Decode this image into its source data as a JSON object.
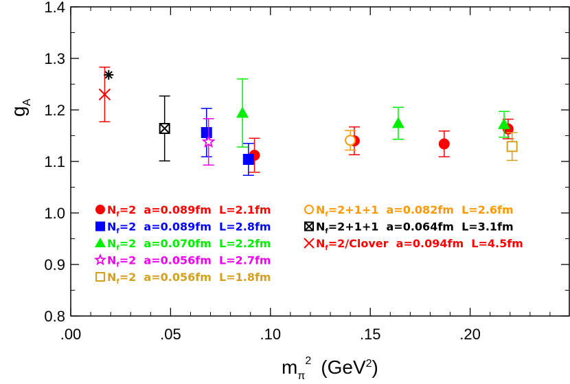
{
  "chart_data": {
    "type": "scatter",
    "xlabel_main": "m",
    "xlabel_sub": "π",
    "xlabel_sup": "2",
    "xlabel_unit": "(GeV",
    "xlabel_unit_sup": "2",
    "xlabel_unit_close": ")",
    "ylabel_main": "g",
    "ylabel_sub": "A",
    "xlim": [
      0.0,
      0.25
    ],
    "ylim": [
      0.8,
      1.4
    ],
    "x_ticks": [
      {
        "value": 0.0,
        "label": ".00"
      },
      {
        "value": 0.05,
        "label": ".05"
      },
      {
        "value": 0.1,
        "label": ".10"
      },
      {
        "value": 0.15,
        "label": ".15"
      },
      {
        "value": 0.2,
        "label": ".20"
      }
    ],
    "y_ticks": [
      {
        "value": 0.8,
        "label": "0.8"
      },
      {
        "value": 0.9,
        "label": "0.9"
      },
      {
        "value": 1.0,
        "label": "1.0"
      },
      {
        "value": 1.1,
        "label": "1.1"
      },
      {
        "value": 1.2,
        "label": "1.2"
      },
      {
        "value": 1.3,
        "label": "1.3"
      },
      {
        "value": 1.4,
        "label": "1.4"
      }
    ],
    "grid": false,
    "legend_position": "bottom-left",
    "series": [
      {
        "name": "Nf=2 a=0.089fm L=2.1fm",
        "nf": "2",
        "params": "a=0.089fm L=2.1fm",
        "color": "#ff0000",
        "marker": "filled-circle",
        "points": [
          {
            "x": 0.092,
            "y": 1.112,
            "err": 0.033
          },
          {
            "x": 0.142,
            "y": 1.14,
            "err": 0.027
          },
          {
            "x": 0.187,
            "y": 1.134,
            "err": 0.025
          },
          {
            "x": 0.219,
            "y": 1.163,
            "err": 0.019
          }
        ]
      },
      {
        "name": "Nf=2 a=0.089fm L=2.8fm",
        "nf": "2",
        "params": "a=0.089fm L=2.8fm",
        "color": "#0000ff",
        "marker": "filled-square",
        "points": [
          {
            "x": 0.068,
            "y": 1.156,
            "err": 0.047
          },
          {
            "x": 0.089,
            "y": 1.104,
            "err": 0.031
          }
        ]
      },
      {
        "name": "Nf=2 a=0.070fm L=2.2fm",
        "nf": "2",
        "params": "a=0.070fm L=2.2fm",
        "color": "#00ee00",
        "marker": "filled-triangle",
        "points": [
          {
            "x": 0.086,
            "y": 1.194,
            "err": 0.066
          },
          {
            "x": 0.164,
            "y": 1.174,
            "err": 0.031
          },
          {
            "x": 0.217,
            "y": 1.172,
            "err": 0.025
          }
        ]
      },
      {
        "name": "Nf=2 a=0.056fm L=2.7fm",
        "nf": "2",
        "params": "a=0.056fm L=2.7fm",
        "color": "#ee00ee",
        "marker": "open-star",
        "points": [
          {
            "x": 0.069,
            "y": 1.138,
            "err": 0.045
          }
        ]
      },
      {
        "name": "Nf=2 a=0.056fm L=1.8fm",
        "nf": "2",
        "params": "a=0.056fm L=1.8fm",
        "color": "#d4a020",
        "marker": "open-square",
        "points": [
          {
            "x": 0.221,
            "y": 1.129,
            "err": 0.027
          }
        ]
      },
      {
        "name": "Nf=2+1+1 a=0.082fm L=2.6fm",
        "nf": "2+1+1",
        "params": "a=0.082fm L=2.6fm",
        "color": "#ff9900",
        "marker": "open-circle",
        "points": [
          {
            "x": 0.14,
            "y": 1.141,
            "err": 0.019
          }
        ]
      },
      {
        "name": "Nf=2+1+1 a=0.064fm L=3.1fm",
        "nf": "2+1+1",
        "params": "a=0.064fm L=3.1fm",
        "color": "#000000",
        "marker": "crossed-square",
        "points": [
          {
            "x": 0.047,
            "y": 1.164,
            "err": 0.063
          }
        ]
      },
      {
        "name": "Nf=2/Clover a=0.094fm L=4.5fm",
        "nf": "2/Clover",
        "params": "a=0.094fm L=4.5fm",
        "color": "#ff0000",
        "marker": "x",
        "points": [
          {
            "x": 0.017,
            "y": 1.23,
            "err": 0.053
          }
        ]
      }
    ],
    "extra_points": [
      {
        "marker": "asterisk",
        "color": "#000000",
        "x": 0.019,
        "y": 1.268
      }
    ]
  }
}
